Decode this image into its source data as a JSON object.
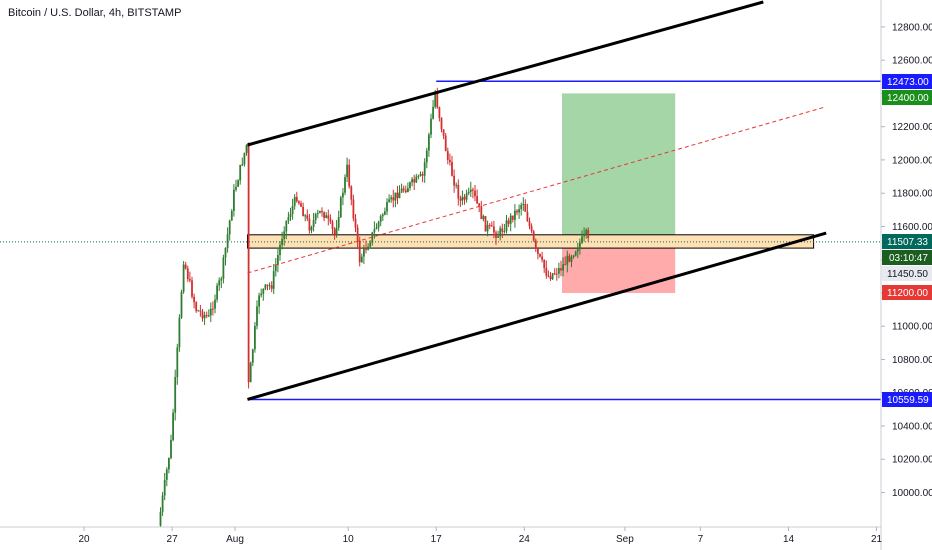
{
  "title": "Bitcoin / U.S. Dollar, 4h, BITSTAMP",
  "colors": {
    "up": "#26a69a",
    "up_body": "#2e7d32",
    "down": "#d32f2f",
    "channel": "#000000",
    "level_line": "#1a1aff",
    "target_zone": "#a5d6a7",
    "stop_zone": "#ffabab",
    "support_zone": "#ffe0b2",
    "current_price": "#00695c",
    "countdown": "#1b5e20"
  },
  "chart_data": {
    "type": "candlestick",
    "symbol": "Bitcoin / U.S. Dollar",
    "interval": "4h",
    "exchange": "BITSTAMP",
    "ylim": [
      9800,
      12950
    ],
    "y_ticks": [
      10000.0,
      10200.0,
      10400.0,
      10600.0,
      10800.0,
      11000.0,
      11200.0,
      11400.0,
      11600.0,
      11800.0,
      12000.0,
      12200.0,
      12400.0,
      12600.0,
      12800.0
    ],
    "x_ticks": [
      {
        "label": "20",
        "date": "2020-07-20"
      },
      {
        "label": "27",
        "date": "2020-07-27"
      },
      {
        "label": "Aug",
        "date": "2020-08-01"
      },
      {
        "label": "10",
        "date": "2020-08-10"
      },
      {
        "label": "17",
        "date": "2020-08-17"
      },
      {
        "label": "24",
        "date": "2020-08-24"
      },
      {
        "label": "Sep",
        "date": "2020-09-01"
      },
      {
        "label": "7",
        "date": "2020-09-07"
      },
      {
        "label": "14",
        "date": "2020-09-14"
      },
      {
        "label": "21",
        "date": "2020-09-21"
      }
    ],
    "price_path": [
      {
        "date": "2020-07-26",
        "price": 9800
      },
      {
        "date": "2020-07-27",
        "price": 10300
      },
      {
        "date": "2020-07-28",
        "price": 11400
      },
      {
        "date": "2020-07-29",
        "price": 11100
      },
      {
        "date": "2020-07-30",
        "price": 11050
      },
      {
        "date": "2020-07-31",
        "price": 11300
      },
      {
        "date": "2020-08-01",
        "price": 11800
      },
      {
        "date": "2020-08-02",
        "price": 12090
      },
      {
        "date": "2020-08-02",
        "price": 10600
      },
      {
        "date": "2020-08-03",
        "price": 11200
      },
      {
        "date": "2020-08-04",
        "price": 11250
      },
      {
        "date": "2020-08-05",
        "price": 11600
      },
      {
        "date": "2020-08-06",
        "price": 11780
      },
      {
        "date": "2020-08-07",
        "price": 11600
      },
      {
        "date": "2020-08-08",
        "price": 11700
      },
      {
        "date": "2020-08-09",
        "price": 11550
      },
      {
        "date": "2020-08-10",
        "price": 11950
      },
      {
        "date": "2020-08-11",
        "price": 11400
      },
      {
        "date": "2020-08-12",
        "price": 11550
      },
      {
        "date": "2020-08-13",
        "price": 11700
      },
      {
        "date": "2020-08-14",
        "price": 11800
      },
      {
        "date": "2020-08-15",
        "price": 11850
      },
      {
        "date": "2020-08-16",
        "price": 11900
      },
      {
        "date": "2020-08-17",
        "price": 12400
      },
      {
        "date": "2020-08-18",
        "price": 12000
      },
      {
        "date": "2020-08-19",
        "price": 11750
      },
      {
        "date": "2020-08-20",
        "price": 11800
      },
      {
        "date": "2020-08-21",
        "price": 11600
      },
      {
        "date": "2020-08-22",
        "price": 11550
      },
      {
        "date": "2020-08-23",
        "price": 11650
      },
      {
        "date": "2020-08-24",
        "price": 11750
      },
      {
        "date": "2020-08-25",
        "price": 11450
      },
      {
        "date": "2020-08-26",
        "price": 11300
      },
      {
        "date": "2020-08-27",
        "price": 11350
      },
      {
        "date": "2020-08-28",
        "price": 11450
      },
      {
        "date": "2020-08-29",
        "price": 11550
      },
      {
        "date": "2020-08-29",
        "price": 11507
      }
    ],
    "drawings": {
      "upper_channel": {
        "from": {
          "date": "2020-08-02",
          "price": 12090
        },
        "to": {
          "date": "2020-09-12",
          "price": 12950
        }
      },
      "lower_channel": {
        "from": {
          "date": "2020-08-02",
          "price": 10560
        },
        "to": {
          "date": "2020-09-17",
          "price": 11560
        }
      },
      "midline_dashed": {
        "from": {
          "date": "2020-08-02",
          "price": 11320
        },
        "to": {
          "date": "2020-09-17",
          "price": 12320
        }
      },
      "resistance_level": {
        "from_date": "2020-08-17",
        "price": 12473.0
      },
      "support_level": {
        "from_date": "2020-08-02",
        "price": 10559.59
      },
      "support_zone": {
        "from_date": "2020-08-02",
        "to_date": "2020-09-16",
        "top": 11550,
        "bottom": 11470
      },
      "target_zone": {
        "from_date": "2020-08-27",
        "to_date": "2020-09-05",
        "top": 12400.0,
        "bottom": 11507.33
      },
      "stop_zone": {
        "from_date": "2020-08-27",
        "to_date": "2020-09-05",
        "top": 11507.33,
        "bottom": 11200.0
      }
    }
  },
  "price_labels": {
    "resistance": "12473.00",
    "target": "12400.00",
    "current": "11507.33",
    "countdown": "03:10:47",
    "entry": "11450.50",
    "stop": "11200.00",
    "support": "10559.59"
  }
}
